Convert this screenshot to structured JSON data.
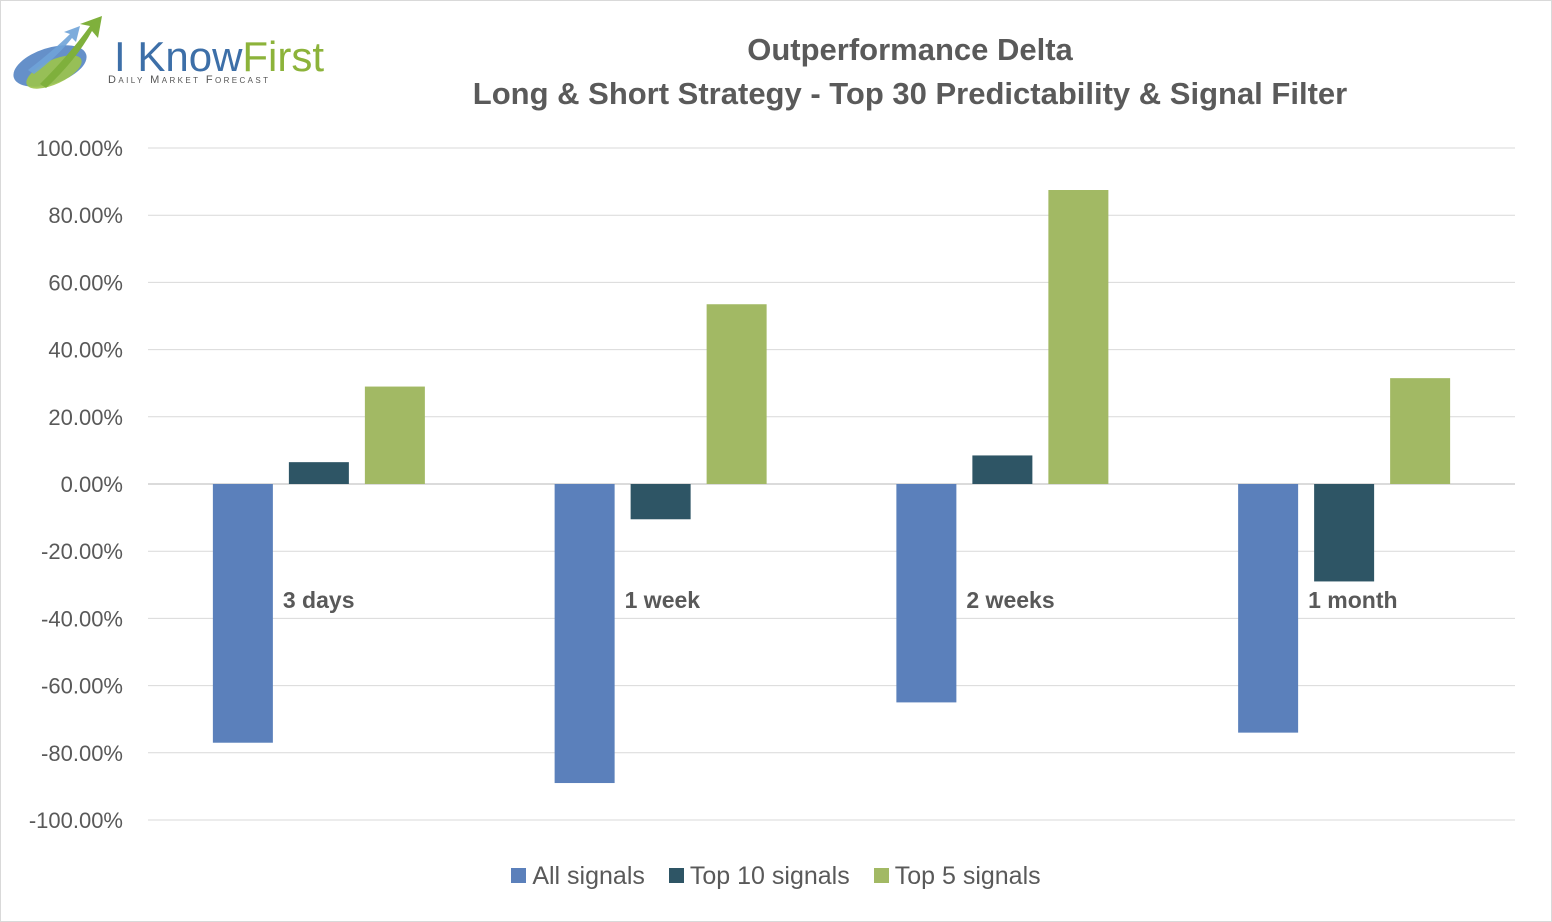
{
  "logo": {
    "brand_part1": "I Know",
    "brand_part2": "First",
    "tagline": "Daily Market Forecast"
  },
  "chart_data": {
    "type": "bar",
    "title": "Outperformance Delta",
    "subtitle": "Long & Short Strategy - Top 30 Predictability & Signal Filter",
    "categories": [
      "3 days",
      "1 week",
      "2 weeks",
      "1 month"
    ],
    "series": [
      {
        "name": "All signals",
        "color": "#5b80bb",
        "values": [
          -77.0,
          -89.0,
          -65.0,
          -74.0
        ]
      },
      {
        "name": "Top 10 signals",
        "color": "#2e5565",
        "values": [
          6.5,
          -10.5,
          8.5,
          -29.0
        ]
      },
      {
        "name": "Top 5 signals",
        "color": "#a2b964",
        "values": [
          29.0,
          53.5,
          87.5,
          31.5
        ]
      }
    ],
    "ylim": [
      -100,
      100
    ],
    "yticks": [
      "100.00%",
      "80.00%",
      "60.00%",
      "40.00%",
      "20.00%",
      "0.00%",
      "-20.00%",
      "-40.00%",
      "-60.00%",
      "-80.00%",
      "-100.00%"
    ],
    "ytick_values": [
      100,
      80,
      60,
      40,
      20,
      0,
      -20,
      -40,
      -60,
      -80,
      -100
    ],
    "xlabel": "",
    "ylabel": "",
    "grid": true,
    "legend_position": "bottom"
  }
}
